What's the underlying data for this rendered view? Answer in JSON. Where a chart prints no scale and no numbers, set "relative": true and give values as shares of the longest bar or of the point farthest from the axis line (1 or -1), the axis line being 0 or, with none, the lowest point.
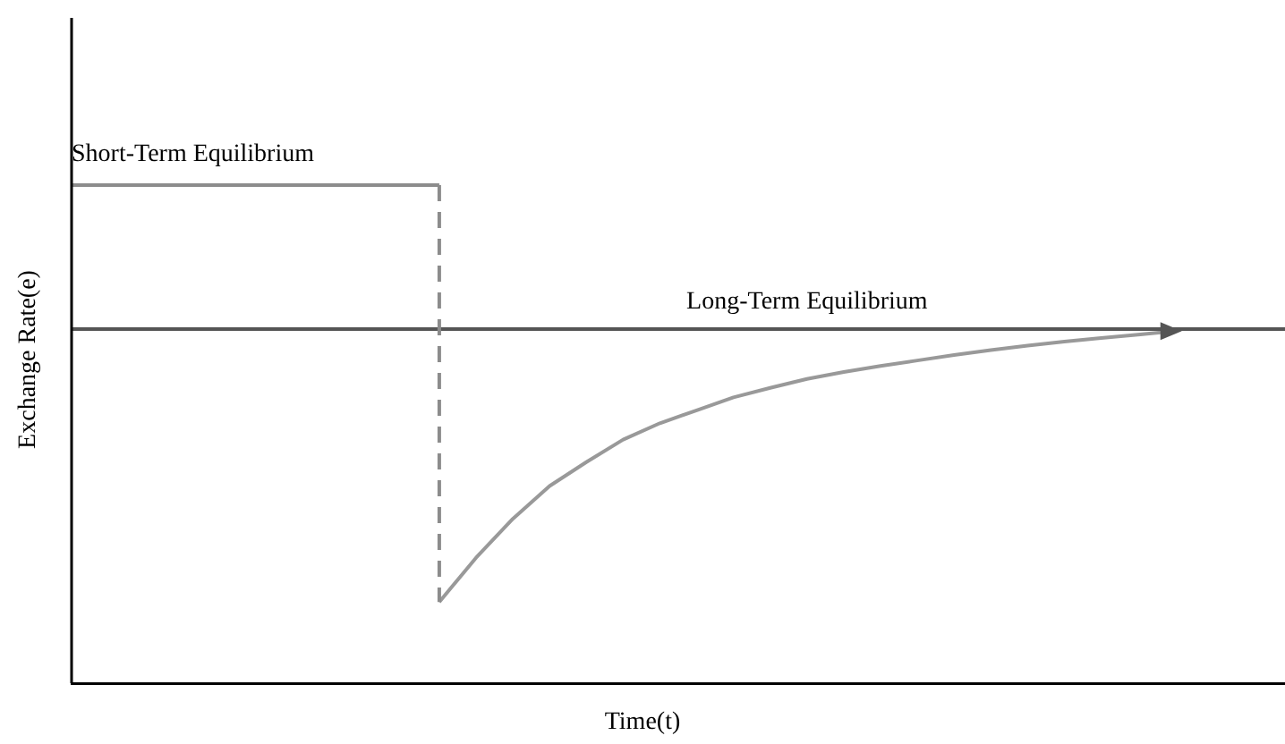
{
  "chart_data": {
    "type": "line",
    "relative": true,
    "xlabel": "Time(t)",
    "ylabel": "Exchange Rate(e)",
    "legend": false,
    "grid": false,
    "marker": "none",
    "categories": [
      null,
      null,
      null,
      null,
      null,
      null,
      null,
      null,
      null,
      null,
      null,
      null,
      null,
      null,
      null,
      null,
      null,
      null,
      null,
      null,
      null,
      null,
      null,
      null,
      null,
      null,
      null,
      null,
      null,
      null,
      null,
      null,
      null,
      null
    ],
    "series": [
      {
        "name": "Short-Term Equilibrium",
        "color": "#8c8c8c",
        "values": [
          1,
          1,
          1,
          1,
          1,
          1,
          1,
          1,
          1,
          1,
          1,
          null,
          null,
          null,
          null,
          null,
          null,
          null,
          null,
          null,
          null,
          null,
          null,
          null,
          null,
          null,
          null,
          null,
          null,
          null,
          null,
          null,
          null,
          null
        ]
      },
      {
        "name": "Long-Term Equilibrium",
        "color": "#555555",
        "values": [
          0.711,
          0.711,
          0.711,
          0.711,
          0.711,
          0.711,
          0.711,
          0.711,
          0.711,
          0.711,
          0.711,
          0.711,
          0.711,
          0.711,
          0.711,
          0.711,
          0.711,
          0.711,
          0.711,
          0.711,
          0.711,
          0.711,
          0.711,
          0.711,
          0.711,
          0.711,
          0.711,
          0.711,
          0.711,
          0.711,
          0.711,
          0.711,
          0.711,
          0.711
        ]
      },
      {
        "color": "#999999",
        "values": [
          null,
          null,
          null,
          null,
          null,
          null,
          null,
          null,
          null,
          null,
          0.163,
          0.252,
          0.33,
          0.396,
          0.444,
          0.489,
          0.522,
          0.548,
          0.574,
          0.593,
          0.611,
          0.625,
          0.637,
          0.648,
          0.659,
          0.669,
          0.678,
          0.686,
          0.693,
          0.7,
          0.707,
          null,
          null,
          null
        ]
      }
    ]
  }
}
